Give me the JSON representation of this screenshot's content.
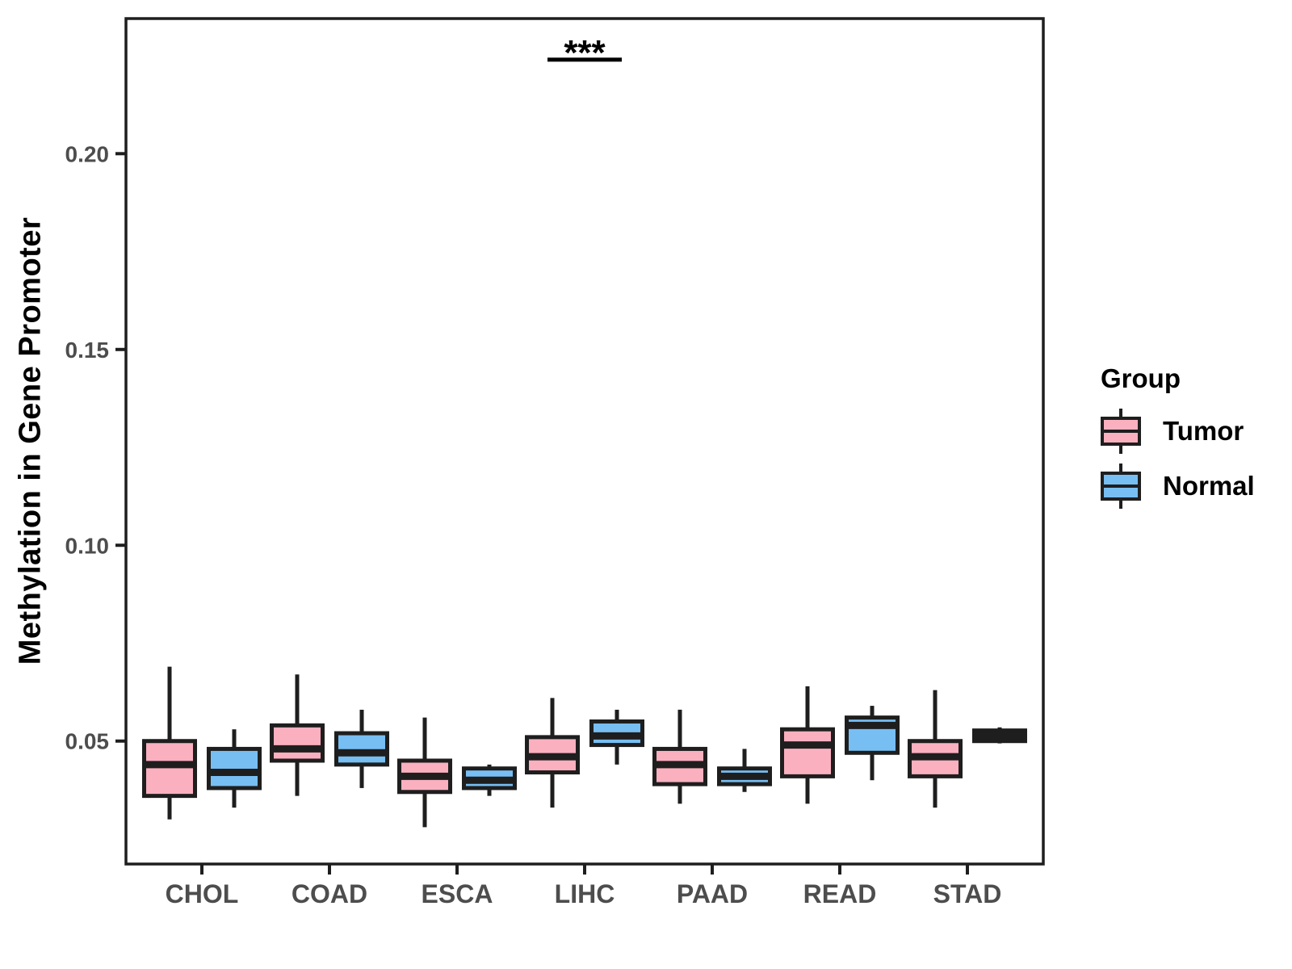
{
  "chart_data": {
    "type": "box",
    "title": "",
    "xlabel": "",
    "ylabel": "Methylation in Gene Promoter",
    "ylim": [
      0.0186,
      0.2345
    ],
    "grid": false,
    "yticks": [
      {
        "value": 0.05,
        "label": "0.05"
      },
      {
        "value": 0.1,
        "label": "0.10"
      },
      {
        "value": 0.15,
        "label": "0.15"
      },
      {
        "value": 0.2,
        "label": "0.20"
      }
    ],
    "categories": [
      "CHOL",
      "COAD",
      "ESCA",
      "LIHC",
      "PAAD",
      "READ",
      "STAD"
    ],
    "legend": {
      "title": "Group",
      "position": "right",
      "entries": [
        {
          "label": "Tumor",
          "color": "#FAB0BF"
        },
        {
          "label": "Normal",
          "color": "#77BEF3"
        }
      ]
    },
    "series": [
      {
        "name": "Tumor",
        "color": "#FAB0BF",
        "boxes": [
          {
            "category": "CHOL",
            "whisker_low": 0.03,
            "q1": 0.036,
            "median": 0.044,
            "q3": 0.05,
            "whisker_high": 0.069
          },
          {
            "category": "COAD",
            "whisker_low": 0.036,
            "q1": 0.045,
            "median": 0.048,
            "q3": 0.054,
            "whisker_high": 0.067
          },
          {
            "category": "ESCA",
            "whisker_low": 0.028,
            "q1": 0.037,
            "median": 0.041,
            "q3": 0.045,
            "whisker_high": 0.056
          },
          {
            "category": "LIHC",
            "whisker_low": 0.033,
            "q1": 0.042,
            "median": 0.046,
            "q3": 0.051,
            "whisker_high": 0.061
          },
          {
            "category": "PAAD",
            "whisker_low": 0.034,
            "q1": 0.039,
            "median": 0.044,
            "q3": 0.048,
            "whisker_high": 0.058
          },
          {
            "category": "READ",
            "whisker_low": 0.034,
            "q1": 0.041,
            "median": 0.049,
            "q3": 0.053,
            "whisker_high": 0.064
          },
          {
            "category": "STAD",
            "whisker_low": 0.033,
            "q1": 0.041,
            "median": 0.046,
            "q3": 0.05,
            "whisker_high": 0.063
          }
        ]
      },
      {
        "name": "Normal",
        "color": "#77BEF3",
        "boxes": [
          {
            "category": "CHOL",
            "whisker_low": 0.033,
            "q1": 0.038,
            "median": 0.042,
            "q3": 0.048,
            "whisker_high": 0.053
          },
          {
            "category": "COAD",
            "whisker_low": 0.038,
            "q1": 0.044,
            "median": 0.047,
            "q3": 0.052,
            "whisker_high": 0.058
          },
          {
            "category": "ESCA",
            "whisker_low": 0.036,
            "q1": 0.038,
            "median": 0.04,
            "q3": 0.043,
            "whisker_high": 0.044
          },
          {
            "category": "LIHC",
            "whisker_low": 0.044,
            "q1": 0.049,
            "median": 0.0513,
            "q3": 0.055,
            "whisker_high": 0.058
          },
          {
            "category": "PAAD",
            "whisker_low": 0.037,
            "q1": 0.039,
            "median": 0.041,
            "q3": 0.043,
            "whisker_high": 0.048
          },
          {
            "category": "READ",
            "whisker_low": 0.04,
            "q1": 0.047,
            "median": 0.054,
            "q3": 0.056,
            "whisker_high": 0.059
          },
          {
            "category": "STAD",
            "whisker_low": 0.0494,
            "q1": 0.05,
            "median": 0.0514,
            "q3": 0.0527,
            "whisker_high": 0.0535
          }
        ]
      }
    ],
    "annotations": [
      {
        "text": "***",
        "category": "LIHC",
        "y": 0.224,
        "kind": "significance"
      }
    ]
  },
  "style": {
    "box_stroke": "#1E1E1E",
    "axis_text_color": "#4D4D4D",
    "title_text_color": "#000000",
    "annotation_color": "#000000",
    "background": "#FFFFFF"
  }
}
